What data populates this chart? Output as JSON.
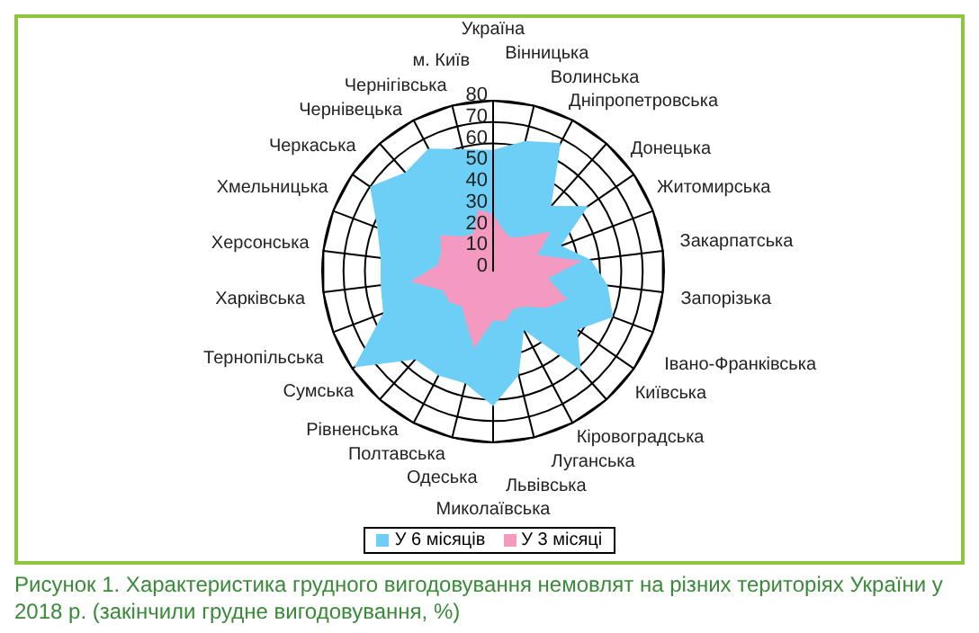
{
  "chart_data": {
    "type": "radar",
    "title": "Рисунок 1. Характеристика грудного вигодовування немовлят на різних територіях України у 2018 р. (закінчили грудне вигодовування, %)",
    "categories": [
      "Україна",
      "Вінницька",
      "Волинська",
      "Дніпропетровська",
      "Донецька",
      "Житомирська",
      "Закарпатська",
      "Запорізька",
      "Івано-Франківська",
      "Київська",
      "Кіровоградська",
      "Луганська",
      "Львівська",
      "Миколаївська",
      "Одеська",
      "Полтавська",
      "Рівненська",
      "Сумська",
      "Тернопільська",
      "Харківська",
      "Херсонська",
      "Хмельницька",
      "Черкаська",
      "Чернівецька",
      "Чернігівська",
      "м. Київ"
    ],
    "series": [
      {
        "name": "У 6  місяців",
        "color": "#6dcff6",
        "values": [
          57,
          63,
          68,
          41,
          54,
          34,
          46,
          54,
          60,
          48,
          62,
          31,
          50,
          63,
          54,
          55,
          55,
          79,
          55,
          53,
          53,
          58,
          70,
          62,
          65,
          59
        ]
      },
      {
        "name": "У 3 місяці",
        "color": "#f49ac1",
        "values": [
          27,
          20,
          18,
          22,
          33,
          22,
          42,
          26,
          37,
          30,
          22,
          20,
          24,
          23,
          37,
          27,
          22,
          25,
          25,
          39,
          26,
          26,
          30,
          22,
          20,
          30
        ]
      }
    ],
    "ylim": [
      0,
      80
    ],
    "yticks": [
      0,
      10,
      20,
      30,
      40,
      50,
      60,
      70,
      80
    ],
    "grid": true,
    "legend": "bottom"
  }
}
